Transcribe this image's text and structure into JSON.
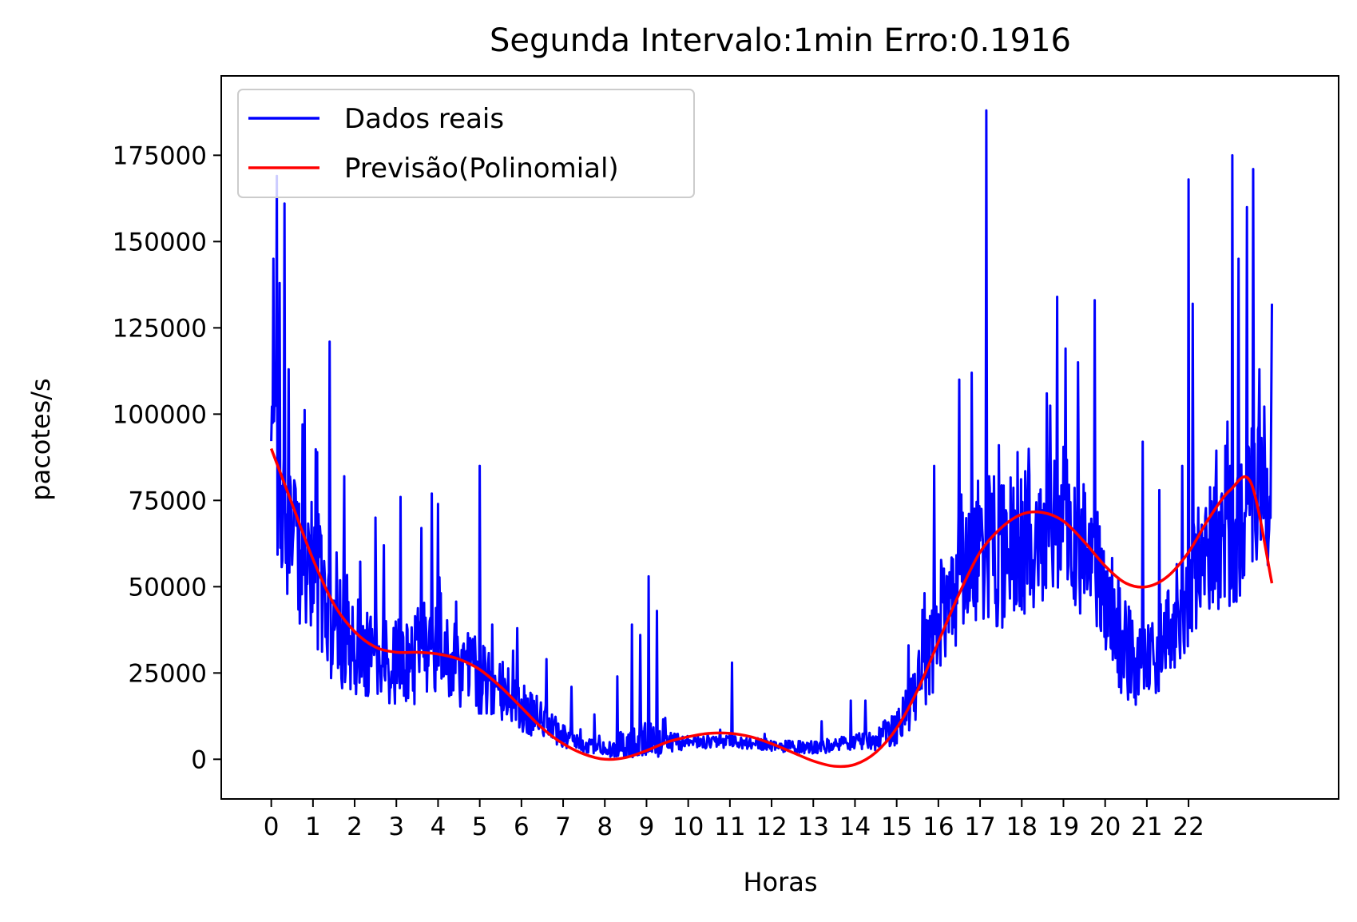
{
  "chart_data": {
    "type": "line",
    "title": "Segunda Intervalo:1min Erro:0.1916",
    "xlabel": "Horas",
    "ylabel": "pacotes/s",
    "xlim": [
      -1.2,
      25.6
    ],
    "ylim": [
      -11500,
      198000
    ],
    "xticks": [
      0,
      1,
      2,
      3,
      4,
      5,
      6,
      7,
      8,
      9,
      10,
      11,
      12,
      13,
      14,
      15,
      16,
      17,
      18,
      19,
      20,
      21,
      22
    ],
    "xtick_labels": [
      "0",
      "1",
      "2",
      "3",
      "4",
      "5",
      "6",
      "7",
      "8",
      "9",
      "10",
      "11",
      "12",
      "13",
      "14",
      "15",
      "16",
      "17",
      "18",
      "19",
      "20",
      "21",
      "22"
    ],
    "yticks": [
      0,
      25000,
      50000,
      75000,
      100000,
      125000,
      150000,
      175000
    ],
    "ytick_labels": [
      "0",
      "25000",
      "50000",
      "75000",
      "100000",
      "125000",
      "150000",
      "175000"
    ],
    "grid": false,
    "legend": "upper-left",
    "series": [
      {
        "name": "Dados reais",
        "color": "#0000ff",
        "envelope": {
          "x": [
            0,
            0.5,
            1,
            1.5,
            2,
            2.5,
            3,
            3.5,
            4,
            4.5,
            5,
            5.5,
            6,
            6.5,
            7,
            7.5,
            8,
            8.5,
            9,
            9.5,
            10,
            10.5,
            11,
            11.5,
            12,
            12.5,
            13,
            13.5,
            14,
            14.5,
            15,
            15.5,
            16,
            16.5,
            17,
            17.5,
            18,
            18.5,
            19,
            19.5,
            20,
            20.5,
            21,
            21.5,
            22,
            22.5,
            23,
            23.5,
            24
          ],
          "base": [
            90000,
            68000,
            55000,
            42000,
            34000,
            30000,
            28000,
            31000,
            30000,
            27000,
            24000,
            20000,
            16000,
            11000,
            7000,
            4000,
            3000,
            4000,
            5000,
            5000,
            5000,
            5000,
            5000,
            4500,
            4000,
            3500,
            3500,
            4000,
            5000,
            6000,
            9000,
            20000,
            40000,
            55000,
            60000,
            60000,
            62000,
            65000,
            70000,
            60000,
            50000,
            30000,
            28000,
            35000,
            50000,
            60000,
            65000,
            75000,
            80000
          ],
          "amp": [
            30000,
            25000,
            22000,
            20000,
            16000,
            14000,
            13000,
            15000,
            14000,
            12000,
            11000,
            9000,
            8000,
            6000,
            3500,
            2500,
            2000,
            5000,
            7000,
            3000,
            2000,
            2000,
            2000,
            1800,
            1800,
            1800,
            1800,
            2200,
            2500,
            3500,
            5000,
            10000,
            18000,
            22000,
            24000,
            22000,
            22000,
            22000,
            22000,
            20000,
            18000,
            15000,
            12000,
            14000,
            18000,
            20000,
            22000,
            24000,
            26000
          ]
        },
        "spikes": [
          [
            0.05,
            145000
          ],
          [
            0.13,
            169000
          ],
          [
            0.2,
            138000
          ],
          [
            0.32,
            161000
          ],
          [
            0.42,
            113000
          ],
          [
            0.75,
            97000
          ],
          [
            1.1,
            89000
          ],
          [
            1.4,
            121000
          ],
          [
            1.75,
            82000
          ],
          [
            2.5,
            70000
          ],
          [
            2.7,
            62000
          ],
          [
            3.1,
            76000
          ],
          [
            3.6,
            67000
          ],
          [
            3.85,
            77000
          ],
          [
            4.0,
            74000
          ],
          [
            5.0,
            85000
          ],
          [
            5.3,
            39000
          ],
          [
            5.9,
            38000
          ],
          [
            6.6,
            29000
          ],
          [
            7.2,
            21000
          ],
          [
            7.75,
            13000
          ],
          [
            8.3,
            24000
          ],
          [
            8.65,
            39000
          ],
          [
            8.85,
            36000
          ],
          [
            9.05,
            53000
          ],
          [
            9.25,
            43000
          ],
          [
            9.45,
            12000
          ],
          [
            11.05,
            28000
          ],
          [
            13.2,
            11000
          ],
          [
            13.9,
            17000
          ],
          [
            14.25,
            17000
          ],
          [
            15.9,
            85000
          ],
          [
            16.5,
            110000
          ],
          [
            16.8,
            112000
          ],
          [
            17.15,
            188000
          ],
          [
            17.45,
            91000
          ],
          [
            17.9,
            89000
          ],
          [
            18.6,
            106000
          ],
          [
            18.85,
            134000
          ],
          [
            19.05,
            119000
          ],
          [
            19.35,
            115000
          ],
          [
            19.75,
            133000
          ],
          [
            20.1,
            52000
          ],
          [
            20.9,
            92000
          ],
          [
            21.3,
            78000
          ],
          [
            21.85,
            85000
          ],
          [
            22.0,
            168000
          ],
          [
            22.1,
            132000
          ],
          [
            23.05,
            175000
          ],
          [
            23.2,
            145000
          ],
          [
            23.4,
            160000
          ],
          [
            23.55,
            171000
          ],
          [
            23.7,
            113000
          ],
          [
            24.0,
            132000
          ]
        ]
      },
      {
        "name": "Previsão(Polinomial)",
        "color": "#ff0000",
        "x": [
          0,
          0.5,
          1,
          1.5,
          2,
          2.5,
          3,
          3.5,
          4,
          4.5,
          5,
          5.5,
          6,
          6.5,
          7,
          7.5,
          8,
          8.5,
          9,
          9.5,
          10,
          10.5,
          11,
          11.5,
          12,
          12.5,
          13,
          13.5,
          14,
          14.5,
          15,
          15.5,
          16,
          16.5,
          17,
          17.5,
          18,
          18.5,
          19,
          19.5,
          20,
          20.5,
          21,
          21.5,
          22,
          22.5,
          23,
          23.5,
          24
        ],
        "y": [
          90000,
          74000,
          58000,
          45000,
          37000,
          32500,
          31000,
          31000,
          30500,
          29000,
          26000,
          21000,
          15000,
          9000,
          4500,
          1500,
          0,
          500,
          2500,
          5000,
          6500,
          7500,
          7500,
          6500,
          4500,
          2000,
          -500,
          -2000,
          -1500,
          2000,
          9000,
          20000,
          34000,
          48000,
          60000,
          67000,
          71000,
          71500,
          69000,
          63000,
          56000,
          51000,
          50000,
          53000,
          60000,
          70000,
          78000,
          80000,
          51000
        ]
      }
    ]
  }
}
